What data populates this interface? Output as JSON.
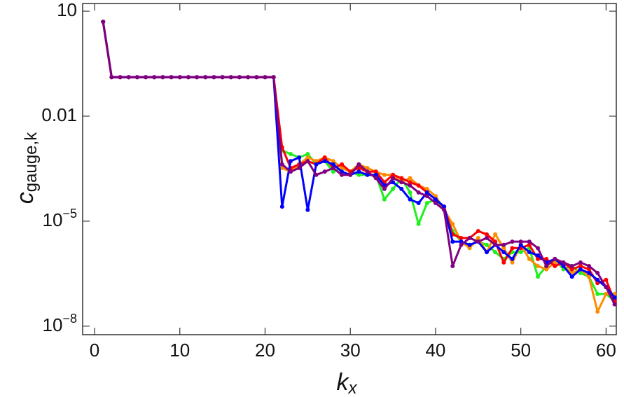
{
  "chart_data": {
    "type": "line",
    "xlabel": "k",
    "xlabel_sub": "x",
    "ylabel": "c",
    "ylabel_sub": "gauge,k",
    "log_y": true,
    "xlim": [
      -1.4,
      61.2
    ],
    "xticks": [
      0,
      10,
      20,
      30,
      40,
      50,
      60
    ],
    "ylim": [
      5.7e-09,
      16.6
    ],
    "yticks": [
      10,
      0.01,
      {
        "value": 1e-05,
        "label": "10",
        "exponent": "−5"
      },
      {
        "value": 1e-08,
        "label": "10",
        "exponent": "−8"
      }
    ],
    "x": [
      1,
      2,
      3,
      4,
      5,
      6,
      7,
      8,
      9,
      10,
      11,
      12,
      13,
      14,
      15,
      16,
      17,
      18,
      19,
      20,
      21,
      22,
      23,
      24,
      25,
      26,
      27,
      28,
      29,
      30,
      31,
      32,
      33,
      34,
      35,
      36,
      37,
      38,
      39,
      40,
      41,
      42,
      43,
      44,
      45,
      46,
      47,
      48,
      49,
      50,
      51,
      52,
      53,
      54,
      55,
      56,
      57,
      58,
      59,
      60,
      61
    ],
    "series": [
      {
        "color": "#1ef01e",
        "values": [
          5,
          0.13,
          0.13,
          0.13,
          0.13,
          0.13,
          0.13,
          0.13,
          0.13,
          0.13,
          0.13,
          0.13,
          0.13,
          0.13,
          0.13,
          0.13,
          0.13,
          0.13,
          0.13,
          0.13,
          0.13,
          0.00105,
          0.00083,
          0.00066,
          0.00083,
          0.00042,
          0.00052,
          0.00026,
          0.00033,
          0.00026,
          0.00021,
          0.00021,
          0.00021,
          4.2e-05,
          8.3e-05,
          0.00017,
          6.6e-05,
          8.3e-06,
          3.3e-05,
          4.2e-05,
          2.1e-05,
          5.2e-06,
          2.6e-06,
          2.1e-06,
          2.6e-06,
          2.1e-06,
          1.3e-06,
          8.3e-07,
          1.3e-06,
          1.3e-06,
          1.7e-06,
          2.6e-07,
          5.2e-07,
          8.3e-07,
          4.2e-07,
          5.2e-07,
          3.3e-07,
          2.6e-07,
          8.3e-08,
          8.3e-08,
          5.2e-08
        ]
      },
      {
        "color": "#ff8c00",
        "values": [
          5,
          0.13,
          0.13,
          0.13,
          0.13,
          0.13,
          0.13,
          0.13,
          0.13,
          0.13,
          0.13,
          0.13,
          0.13,
          0.13,
          0.13,
          0.13,
          0.13,
          0.13,
          0.13,
          0.13,
          0.13,
          0.00033,
          0.00026,
          0.00042,
          0.00066,
          0.00052,
          0.00066,
          0.00052,
          0.00033,
          0.00026,
          0.00042,
          0.00033,
          0.00026,
          0.00021,
          0.00021,
          0.00013,
          0.00017,
          0.000105,
          8.3e-05,
          5.2e-05,
          2.1e-05,
          8.3e-06,
          2.6e-06,
          1.7e-06,
          3.3e-06,
          1.3e-06,
          4.2e-06,
          1.7e-06,
          6.6e-07,
          2.1e-06,
          8.3e-07,
          5.2e-07,
          4.2e-07,
          6.6e-07,
          5.2e-07,
          3.3e-07,
          4.2e-07,
          2.6e-07,
          2.6e-08,
          8.3e-08,
          8.3e-08
        ]
      },
      {
        "color": "#ff0000",
        "values": [
          5,
          0.13,
          0.13,
          0.13,
          0.13,
          0.13,
          0.13,
          0.13,
          0.13,
          0.13,
          0.13,
          0.13,
          0.13,
          0.13,
          0.13,
          0.13,
          0.13,
          0.13,
          0.13,
          0.13,
          0.13,
          0.0013,
          0.00033,
          0.00042,
          0.00052,
          0.00042,
          0.00066,
          0.00033,
          0.00042,
          0.00026,
          0.00033,
          0.00026,
          0.00026,
          0.00013,
          0.00021,
          0.00017,
          0.00013,
          0.000105,
          6.6e-05,
          4.2e-05,
          2.6e-05,
          4.2e-06,
          3.3e-06,
          3.3e-06,
          5.2e-06,
          4.2e-06,
          2.6e-06,
          6.6e-07,
          1.7e-06,
          1.7e-06,
          2.1e-06,
          8.3e-07,
          8.3e-07,
          5.2e-07,
          6.6e-07,
          4.2e-07,
          5.2e-07,
          4.2e-07,
          1.7e-07,
          2.1e-07,
          5.2e-08
        ]
      },
      {
        "color": "#0000ff",
        "values": [
          5,
          0.13,
          0.13,
          0.13,
          0.13,
          0.13,
          0.13,
          0.13,
          0.13,
          0.13,
          0.13,
          0.13,
          0.13,
          0.13,
          0.13,
          0.13,
          0.13,
          0.13,
          0.13,
          0.13,
          0.13,
          2.6e-05,
          0.00052,
          0.00066,
          2.1e-05,
          0.00042,
          0.00052,
          0.00042,
          0.00026,
          0.00021,
          0.00026,
          0.00021,
          0.00021,
          0.000105,
          0.00013,
          8.3e-05,
          4.2e-05,
          3.3e-05,
          6.6e-05,
          4.2e-05,
          2.6e-05,
          2.6e-06,
          2.6e-06,
          2.1e-06,
          2.6e-06,
          1.3e-06,
          2.1e-06,
          1.3e-06,
          8.3e-07,
          2.1e-06,
          1.3e-06,
          1.05e-06,
          6.6e-07,
          8.3e-07,
          5.2e-07,
          2.6e-07,
          4.2e-07,
          3.3e-07,
          2.1e-07,
          1.3e-07,
          6.6e-08
        ]
      },
      {
        "color": "#800080",
        "values": [
          5,
          0.13,
          0.13,
          0.13,
          0.13,
          0.13,
          0.13,
          0.13,
          0.13,
          0.13,
          0.13,
          0.13,
          0.13,
          0.13,
          0.13,
          0.13,
          0.13,
          0.13,
          0.13,
          0.13,
          0.13,
          0.00042,
          0.00026,
          0.00033,
          0.00052,
          0.00021,
          0.00026,
          0.00033,
          0.00021,
          0.00021,
          0.00042,
          0.00026,
          0.00017,
          8.3e-05,
          0.00017,
          0.00013,
          0.000105,
          6.6e-05,
          5.2e-05,
          3.3e-05,
          2.1e-05,
          5.2e-07,
          2.1e-06,
          3.3e-06,
          2.6e-06,
          3.3e-06,
          2.1e-06,
          2.1e-06,
          2.6e-06,
          2.6e-06,
          2.6e-06,
          1.7e-06,
          5.2e-07,
          8.3e-07,
          6.6e-07,
          5.2e-07,
          6.6e-07,
          5.2e-07,
          3.3e-07,
          1.3e-07,
          4.2e-08
        ]
      }
    ]
  }
}
